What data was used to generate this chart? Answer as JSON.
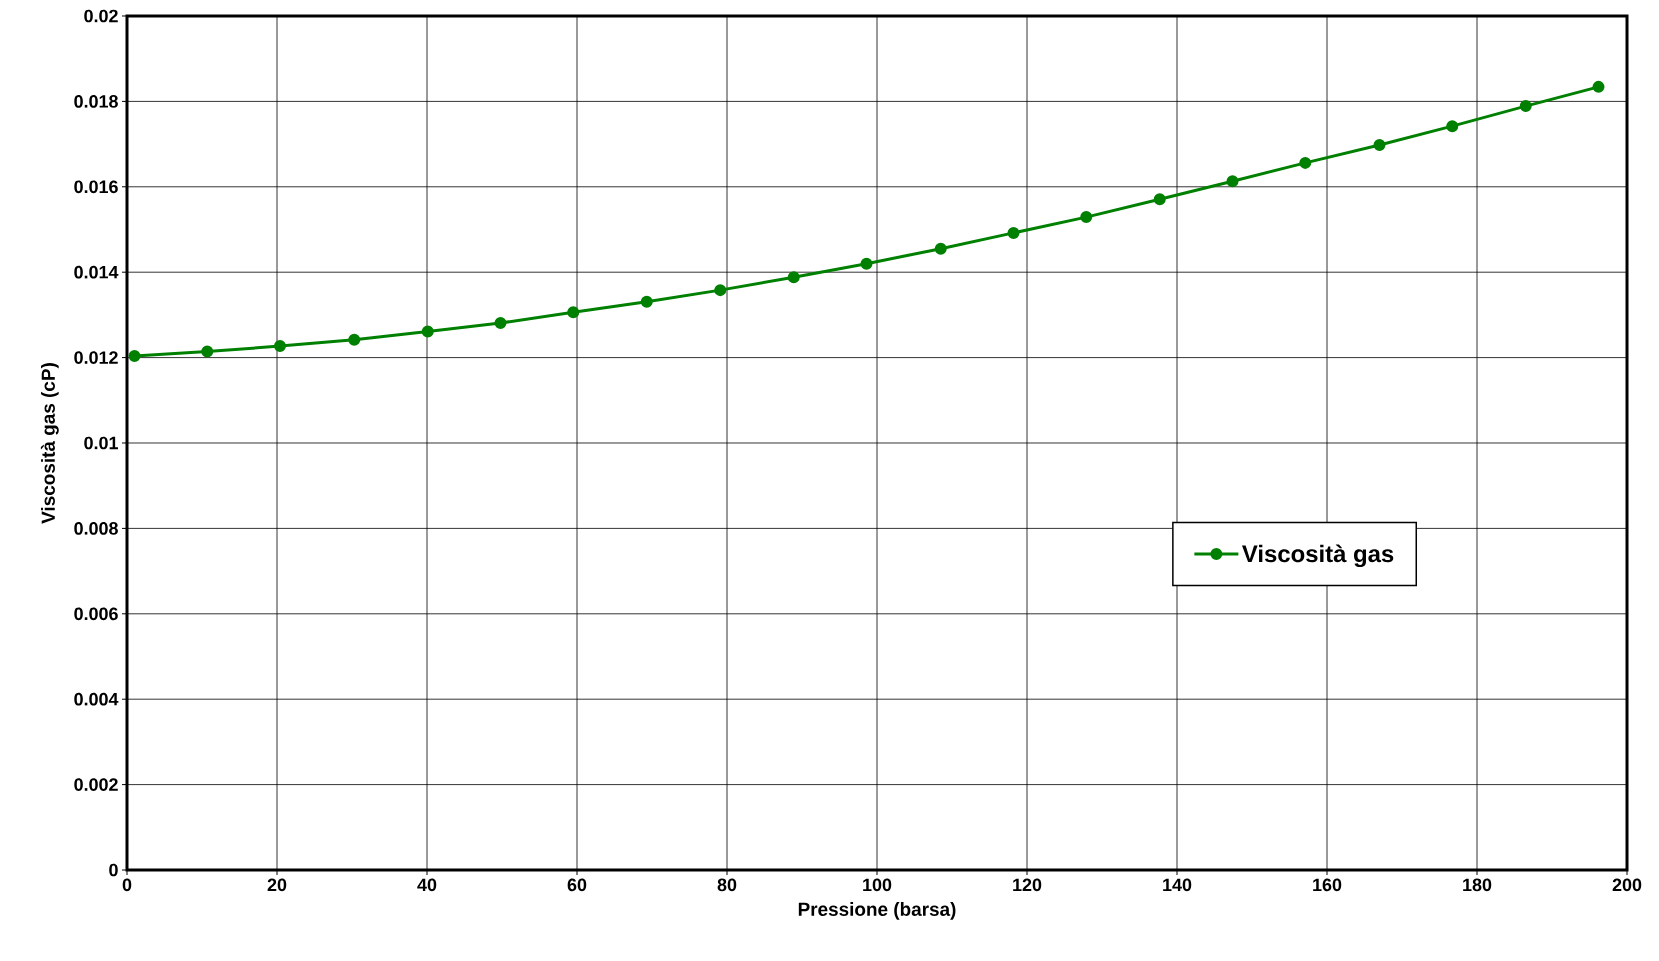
{
  "chart_data": {
    "type": "line",
    "xlabel": "Pressione (barsa)",
    "ylabel": "Viscosità gas (cP)",
    "series": [
      {
        "name": "Viscosità gas",
        "color": "#008000",
        "x": [
          1.0,
          10.7,
          20.4,
          30.3,
          40.1,
          49.8,
          59.5,
          69.3,
          79.1,
          88.9,
          98.6,
          108.5,
          118.2,
          127.9,
          137.7,
          147.4,
          157.1,
          167.0,
          176.7,
          186.5,
          196.2
        ],
        "values": [
          0.01204,
          0.01214,
          0.01227,
          0.01242,
          0.01261,
          0.01281,
          0.01306,
          0.01331,
          0.01358,
          0.01388,
          0.0142,
          0.01455,
          0.01492,
          0.01529,
          0.01571,
          0.01613,
          0.01656,
          0.01698,
          0.01742,
          0.01789,
          0.01834
        ]
      }
    ],
    "xlim": [
      0,
      200
    ],
    "xticks": [
      0,
      20,
      40,
      60,
      80,
      100,
      120,
      140,
      160,
      180,
      200
    ],
    "ylim": [
      0,
      0.02
    ],
    "yticks": [
      0,
      0.002,
      0.004,
      0.006,
      0.008,
      0.01,
      0.012,
      0.014,
      0.016,
      0.018,
      0.02
    ],
    "grid": true,
    "legend": "right",
    "marker": "circle",
    "line_style": "solid"
  }
}
